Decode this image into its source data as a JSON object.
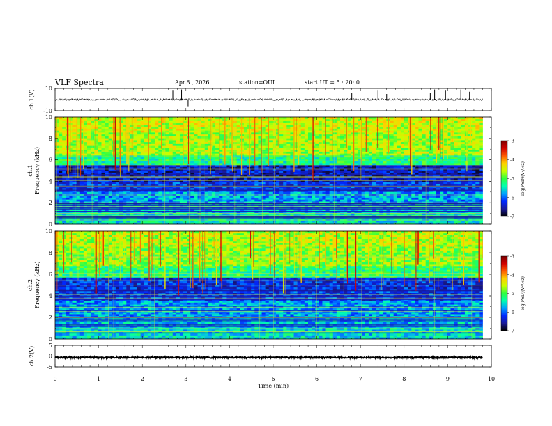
{
  "header": {
    "title": "VLF Spectra",
    "date": "Apr.8 , 2026",
    "station": "station=OUI",
    "start": "start UT = 5 : 20: 0"
  },
  "colors": {
    "background": "#ffffff",
    "colormap": [
      "#000000",
      "#1a1a9a",
      "#0028ff",
      "#00a0ff",
      "#00ffb0",
      "#30ff40",
      "#c8ff00",
      "#ffd000",
      "#ff5a00",
      "#d00000",
      "#7a0000"
    ],
    "overlay_line": "#c8e040"
  },
  "chart_data": [
    {
      "type": "line",
      "name": "ch1-waveform",
      "ylabel": "ch.1(V)",
      "ylim": [
        -10,
        10
      ],
      "y_ticks": [
        "10",
        "-10"
      ],
      "xlim": [
        0,
        10
      ],
      "baseline": 0,
      "noise_band": [
        -1,
        1
      ],
      "spikes": [
        {
          "x": 2.7,
          "y": 8
        },
        {
          "x": 2.9,
          "y": 9
        },
        {
          "x": 3.05,
          "y": -6
        },
        {
          "x": 6.8,
          "y": 6
        },
        {
          "x": 7.4,
          "y": 8
        },
        {
          "x": 7.6,
          "y": 5
        },
        {
          "x": 8.6,
          "y": 6
        },
        {
          "x": 8.7,
          "y": 9
        },
        {
          "x": 8.95,
          "y": 8
        },
        {
          "x": 9.3,
          "y": 9
        },
        {
          "x": 9.5,
          "y": 7
        }
      ]
    },
    {
      "type": "heatmap",
      "name": "ch1-spectrogram",
      "ylabel": "ch.1\nFrequency (kHz)",
      "ylabel_lines": [
        "ch.1",
        "Frequency (kHz)"
      ],
      "y_ticks": [
        "0",
        "2",
        "4",
        "6",
        "8",
        "10"
      ],
      "ylim": [
        0,
        10
      ],
      "xlim": [
        0,
        9.8
      ],
      "bands": [
        {
          "from": 0,
          "to": 1,
          "level": 0.38
        },
        {
          "from": 1,
          "to": 2,
          "level": 0.34
        },
        {
          "from": 2,
          "to": 3,
          "level": 0.3
        },
        {
          "from": 3,
          "to": 4,
          "level": 0.2
        },
        {
          "from": 4,
          "to": 5.5,
          "level": 0.14
        },
        {
          "from": 5.5,
          "to": 6.5,
          "level": 0.44
        },
        {
          "from": 6.5,
          "to": 8.5,
          "level": 0.58
        },
        {
          "from": 8.5,
          "to": 10,
          "level": 0.62
        }
      ],
      "colorbar": {
        "label": "log(PSD)(V²/Hz)",
        "ticks": [
          "-3",
          "-4",
          "-5",
          "-6",
          "-7"
        ],
        "range": [
          -7,
          -3
        ]
      }
    },
    {
      "type": "heatmap",
      "name": "ch2-spectrogram",
      "ylabel": "ch.2\nFrequency (kHz)",
      "ylabel_lines": [
        "ch.2",
        "Frequency (kHz)"
      ],
      "y_ticks": [
        "0",
        "2",
        "4",
        "6",
        "8",
        "10"
      ],
      "ylim": [
        0,
        10
      ],
      "xlim": [
        0,
        9.8
      ],
      "bands": [
        {
          "from": 0,
          "to": 1,
          "level": 0.36
        },
        {
          "from": 1,
          "to": 2,
          "level": 0.33
        },
        {
          "from": 2,
          "to": 3.5,
          "level": 0.3
        },
        {
          "from": 3.5,
          "to": 4.5,
          "level": 0.2
        },
        {
          "from": 4.5,
          "to": 5.8,
          "level": 0.18
        },
        {
          "from": 5.8,
          "to": 6.8,
          "level": 0.46
        },
        {
          "from": 6.8,
          "to": 8.5,
          "level": 0.56
        },
        {
          "from": 8.5,
          "to": 10,
          "level": 0.6
        }
      ],
      "colorbar": {
        "label": "log(PSD)(V²/Hz)",
        "ticks": [
          "-3",
          "-4",
          "-5",
          "-6",
          "-7"
        ],
        "range": [
          -7,
          -3
        ]
      }
    },
    {
      "type": "line",
      "name": "ch2-waveform",
      "ylabel": "ch.2(V)",
      "ylim": [
        -5,
        5
      ],
      "y_ticks": [
        "5",
        "0",
        "-5"
      ],
      "xlim": [
        0,
        10
      ],
      "baseline": -0.7,
      "noise_band": [
        -1,
        -0.4
      ],
      "x_ticks": [
        "0",
        "1",
        "2",
        "3",
        "4",
        "5",
        "6",
        "7",
        "8",
        "9",
        "10"
      ],
      "xlabel": "Time (min)"
    }
  ]
}
